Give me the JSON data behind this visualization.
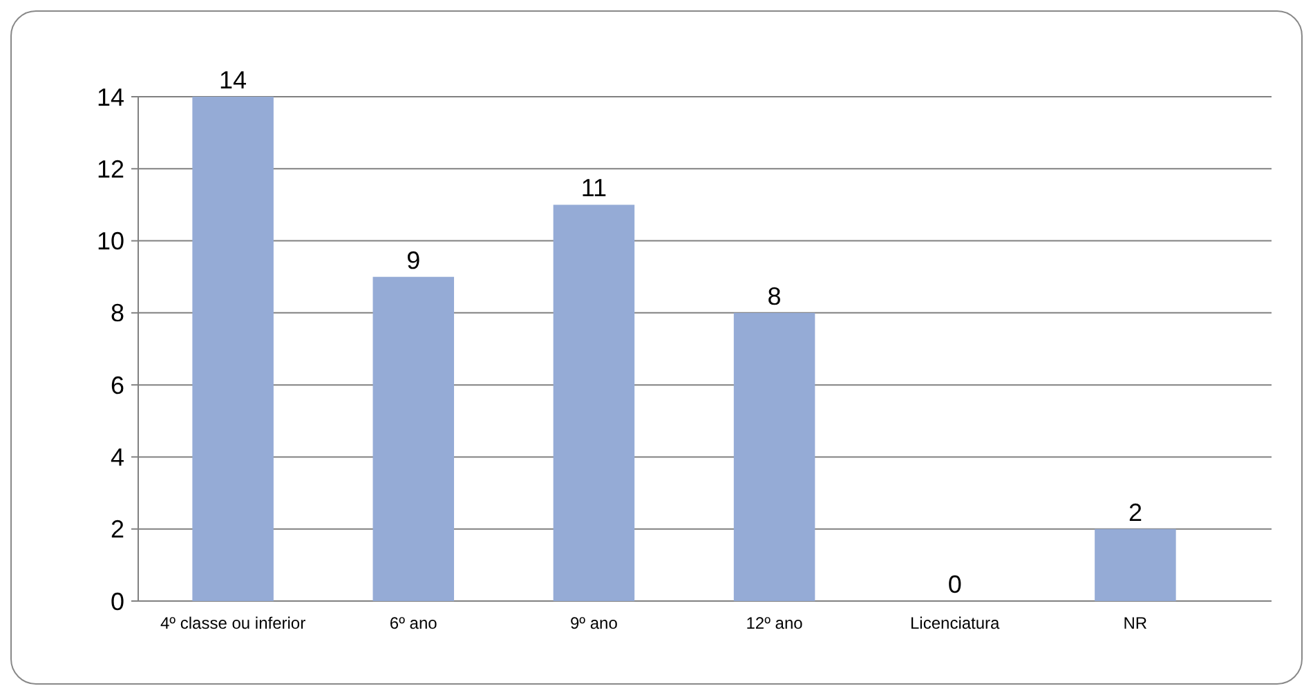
{
  "chart_data": {
    "type": "bar",
    "categories": [
      "4º classe ou inferior",
      "6º ano",
      "9º ano",
      "12º ano",
      "Licenciatura",
      "NR"
    ],
    "values": [
      14,
      9,
      11,
      8,
      0,
      2
    ],
    "color": "#95abd6",
    "ylim": [
      0,
      14
    ],
    "yticks": [
      0,
      2,
      4,
      6,
      8,
      10,
      12,
      14
    ],
    "grid": "y",
    "data_labels": true
  }
}
